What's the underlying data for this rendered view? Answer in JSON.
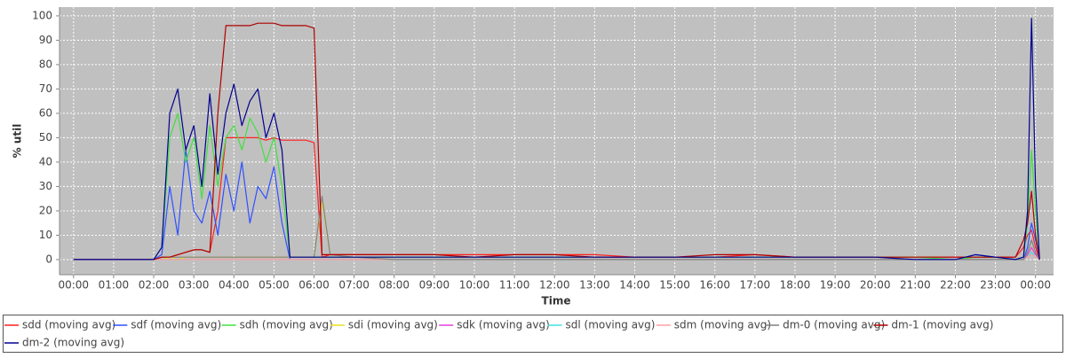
{
  "chart_data": {
    "type": "line",
    "x_label": "Time",
    "y_label": "% util",
    "x": [
      0,
      1,
      2,
      2.2,
      2.4,
      2.6,
      2.8,
      3.0,
      3.2,
      3.4,
      3.6,
      3.8,
      4.0,
      4.2,
      4.4,
      4.6,
      4.8,
      5.0,
      5.2,
      5.4,
      5.6,
      5.8,
      6.0,
      6.2,
      6.4,
      7,
      8,
      9,
      10,
      11,
      12,
      13,
      14,
      15,
      16,
      17,
      18,
      19,
      20,
      21,
      22,
      22.5,
      23,
      23.5,
      23.7,
      23.8,
      23.9,
      24.0,
      24.1
    ],
    "xlim": [
      -0.35,
      24.45
    ],
    "xticks": [
      {
        "value": 0,
        "label": "00:00"
      },
      {
        "value": 1,
        "label": "01:00"
      },
      {
        "value": 2,
        "label": "02:00"
      },
      {
        "value": 3,
        "label": "03:00"
      },
      {
        "value": 4,
        "label": "04:00"
      },
      {
        "value": 5,
        "label": "05:00"
      },
      {
        "value": 6,
        "label": "06:00"
      },
      {
        "value": 7,
        "label": "07:00"
      },
      {
        "value": 8,
        "label": "08:00"
      },
      {
        "value": 9,
        "label": "09:00"
      },
      {
        "value": 10,
        "label": "10:00"
      },
      {
        "value": 11,
        "label": "11:00"
      },
      {
        "value": 12,
        "label": "12:00"
      },
      {
        "value": 13,
        "label": "13:00"
      },
      {
        "value": 14,
        "label": "14:00"
      },
      {
        "value": 15,
        "label": "15:00"
      },
      {
        "value": 16,
        "label": "16:00"
      },
      {
        "value": 17,
        "label": "17:00"
      },
      {
        "value": 18,
        "label": "18:00"
      },
      {
        "value": 19,
        "label": "19:00"
      },
      {
        "value": 20,
        "label": "20:00"
      },
      {
        "value": 21,
        "label": "21:00"
      },
      {
        "value": 22,
        "label": "22:00"
      },
      {
        "value": 23,
        "label": "23:00"
      },
      {
        "value": 24,
        "label": "00:00"
      }
    ],
    "ylim": [
      -6.2,
      103.6
    ],
    "yticks": [
      0,
      10,
      20,
      30,
      40,
      50,
      60,
      70,
      80,
      90,
      100
    ],
    "grid": true,
    "legend": "bottom",
    "series": [
      {
        "name": "sdd (moving avg)",
        "color": "#ff2020",
        "values": [
          0,
          0,
          0,
          1,
          1,
          2,
          3,
          4,
          4,
          3,
          20,
          50,
          50,
          50,
          50,
          50,
          49,
          50,
          49,
          49,
          49,
          49,
          48,
          1,
          2,
          2,
          2,
          2,
          2,
          2,
          2,
          2,
          1,
          1,
          1,
          2,
          1,
          1,
          1,
          1,
          1,
          1,
          1,
          1,
          5,
          10,
          12,
          5,
          0
        ]
      },
      {
        "name": "sdf (moving avg)",
        "color": "#3050ff",
        "values": [
          0,
          0,
          0,
          2,
          30,
          10,
          45,
          20,
          15,
          28,
          10,
          35,
          20,
          40,
          15,
          30,
          25,
          38,
          15,
          0,
          0,
          0,
          0,
          0,
          0,
          0,
          0,
          0,
          0,
          0,
          0,
          0,
          0,
          0,
          0,
          0,
          0,
          0,
          0,
          0,
          0,
          2,
          1,
          0,
          0,
          5,
          15,
          8,
          0
        ]
      },
      {
        "name": "sdh (moving avg)",
        "color": "#40e040",
        "values": [
          0,
          0,
          0,
          5,
          50,
          60,
          40,
          50,
          25,
          55,
          30,
          50,
          55,
          45,
          58,
          52,
          40,
          50,
          30,
          1,
          1,
          1,
          1,
          1,
          1,
          1,
          1,
          1,
          1,
          1,
          1,
          1,
          1,
          1,
          1,
          1,
          1,
          1,
          1,
          1,
          0,
          1,
          1,
          0,
          1,
          15,
          45,
          20,
          0
        ]
      },
      {
        "name": "sdi (moving avg)",
        "color": "#e8e020",
        "values": [
          0,
          0,
          0,
          0,
          1,
          0,
          1,
          1,
          1,
          1,
          1,
          1,
          1,
          1,
          1,
          1,
          1,
          1,
          1,
          1,
          1,
          1,
          1,
          24,
          2,
          1,
          0,
          0,
          0,
          0,
          0,
          0,
          0,
          0,
          0,
          0,
          0,
          0,
          0,
          0,
          0,
          0,
          0,
          0,
          0,
          2,
          5,
          2,
          0
        ]
      },
      {
        "name": "sdk (moving avg)",
        "color": "#e040e0",
        "values": [
          0,
          0,
          0,
          0,
          0,
          0,
          0,
          0,
          0,
          0,
          0,
          0,
          0,
          0,
          0,
          0,
          0,
          0,
          0,
          0,
          0,
          0,
          0,
          0,
          0,
          0,
          0,
          0,
          0,
          0,
          0,
          0,
          0,
          0,
          0,
          0,
          0,
          0,
          0,
          0,
          0,
          0,
          0,
          0,
          0,
          2,
          5,
          2,
          0
        ]
      },
      {
        "name": "sdl (moving avg)",
        "color": "#40e0e0",
        "values": [
          0,
          0,
          0,
          0,
          0,
          0,
          0,
          0,
          0,
          0,
          0,
          0,
          0,
          0,
          0,
          0,
          0,
          0,
          0,
          0,
          0,
          0,
          0,
          0,
          0,
          0,
          0,
          0,
          0,
          0,
          0,
          0,
          0,
          0,
          0,
          0,
          0,
          0,
          0,
          0,
          0,
          0,
          0,
          0,
          0,
          1,
          3,
          1,
          0
        ]
      },
      {
        "name": "sdm (moving avg)",
        "color": "#ffa0a0",
        "values": [
          0,
          0,
          0,
          0,
          0,
          0,
          0,
          0,
          0,
          0,
          0,
          0,
          0,
          0,
          0,
          0,
          0,
          0,
          0,
          0,
          0,
          0,
          0,
          0,
          0,
          0,
          0,
          0,
          0,
          0,
          0,
          0,
          0,
          0,
          0,
          0,
          0,
          0,
          0,
          0,
          0,
          0,
          0,
          0,
          0,
          1,
          2,
          1,
          0
        ]
      },
      {
        "name": "dm-0 (moving avg)",
        "color": "#808080",
        "values": [
          0,
          0,
          0,
          1,
          1,
          1,
          1,
          1,
          1,
          1,
          1,
          1,
          1,
          1,
          1,
          1,
          1,
          1,
          1,
          1,
          1,
          1,
          1,
          26,
          2,
          1,
          0,
          0,
          0,
          0,
          0,
          0,
          0,
          0,
          0,
          0,
          0,
          0,
          0,
          0,
          0,
          0,
          0,
          0,
          0,
          3,
          8,
          3,
          0
        ]
      },
      {
        "name": "dm-1 (moving avg)",
        "color": "#b00000",
        "values": [
          0,
          0,
          0,
          1,
          1,
          2,
          3,
          4,
          4,
          3,
          60,
          96,
          96,
          96,
          96,
          97,
          97,
          97,
          96,
          96,
          96,
          96,
          95,
          2,
          2,
          2,
          2,
          2,
          1,
          2,
          2,
          1,
          1,
          1,
          2,
          2,
          1,
          1,
          1,
          1,
          1,
          1,
          1,
          1,
          8,
          15,
          28,
          10,
          0
        ]
      },
      {
        "name": "dm-2 (moving avg)",
        "color": "#000090",
        "values": [
          0,
          0,
          0,
          5,
          60,
          70,
          45,
          55,
          30,
          68,
          35,
          60,
          72,
          55,
          65,
          70,
          50,
          60,
          45,
          1,
          1,
          1,
          1,
          1,
          1,
          1,
          1,
          1,
          1,
          1,
          1,
          1,
          1,
          1,
          1,
          1,
          1,
          1,
          1,
          0,
          0,
          2,
          1,
          0,
          1,
          20,
          99,
          30,
          0
        ]
      }
    ]
  }
}
